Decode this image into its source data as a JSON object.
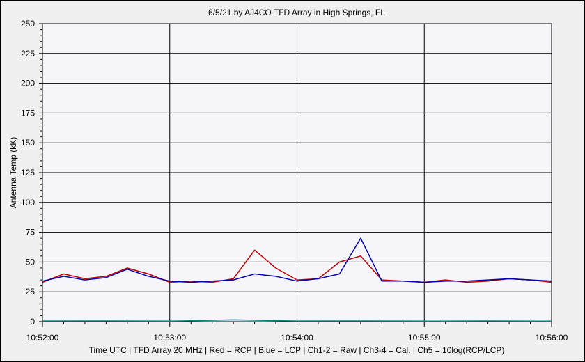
{
  "chart_data": {
    "type": "line",
    "title": "6/5/21  by  AJ4CO TFD Array  in  High Springs, FL",
    "xlabel": "Time UTC | TFD Array 20 MHz | Red = RCP | Blue = LCP | Ch1-2 = Raw | Ch3-4 = Cal. | Ch5 = 10log(RCP/LCP)",
    "ylabel": "Antenna Temp (kK)",
    "xlim": [
      "10:52:00",
      "10:56:00"
    ],
    "x_ticks": [
      "10:52:00",
      "10:53:00",
      "10:54:00",
      "10:55:00",
      "10:56:00"
    ],
    "ylim": [
      0,
      250
    ],
    "y_ticks": [
      "0",
      "25",
      "50",
      "75",
      "100",
      "125",
      "150",
      "175",
      "200",
      "225",
      "250"
    ],
    "grid": true,
    "series": [
      {
        "color": "#c00000",
        "x": [
          "10:52:00",
          "10:52:10",
          "10:52:20",
          "10:52:30",
          "10:52:40",
          "10:52:50",
          "10:53:00",
          "10:53:10",
          "10:53:20",
          "10:53:30",
          "10:53:40",
          "10:53:50",
          "10:54:00",
          "10:54:10",
          "10:54:20",
          "10:54:30",
          "10:54:40",
          "10:54:50",
          "10:55:00",
          "10:55:10",
          "10:55:20",
          "10:55:30",
          "10:55:40",
          "10:55:50",
          "10:56:00"
        ],
        "values": [
          33,
          40,
          36,
          38,
          45,
          40,
          33,
          34,
          33,
          36,
          60,
          45,
          35,
          36,
          50,
          55,
          35,
          34,
          33,
          35,
          33,
          34,
          36,
          35,
          33
        ]
      },
      {
        "color": "#0000b0",
        "x": [
          "10:52:00",
          "10:52:10",
          "10:52:20",
          "10:52:30",
          "10:52:40",
          "10:52:50",
          "10:53:00",
          "10:53:10",
          "10:53:20",
          "10:53:30",
          "10:53:40",
          "10:53:50",
          "10:54:00",
          "10:54:10",
          "10:54:20",
          "10:54:30",
          "10:54:40",
          "10:54:50",
          "10:55:00",
          "10:55:10",
          "10:55:20",
          "10:55:30",
          "10:55:40",
          "10:55:50",
          "10:56:00"
        ],
        "values": [
          34,
          38,
          35,
          37,
          44,
          38,
          34,
          33,
          34,
          35,
          40,
          38,
          34,
          36,
          40,
          70,
          34,
          34,
          33,
          34,
          34,
          35,
          36,
          35,
          34
        ]
      },
      {
        "color": "#008080",
        "x": [
          "10:52:00",
          "10:52:30",
          "10:53:00",
          "10:53:30",
          "10:54:00",
          "10:54:30",
          "10:55:00",
          "10:55:30",
          "10:56:00"
        ],
        "values": [
          0.5,
          0.6,
          0.4,
          1.5,
          0.5,
          0.6,
          0.4,
          0.6,
          0.4
        ]
      }
    ]
  }
}
